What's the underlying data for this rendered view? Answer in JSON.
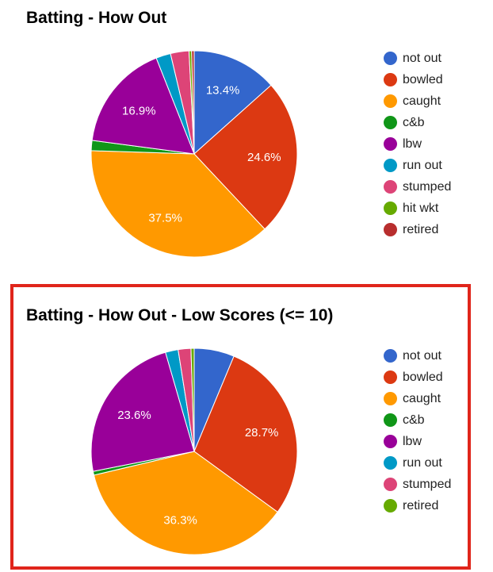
{
  "chart_data": [
    {
      "type": "pie",
      "title": "Batting - How Out",
      "categories": [
        "not out",
        "bowled",
        "caught",
        "c&b",
        "lbw",
        "run out",
        "stumped",
        "hit wkt",
        "retired"
      ],
      "values": [
        13.4,
        24.6,
        37.5,
        1.6,
        16.9,
        2.3,
        2.9,
        0.4,
        0.4
      ],
      "labels_shown": [
        "13.4%",
        "24.6%",
        "37.5%",
        "",
        "16.9%",
        "",
        "",
        "",
        ""
      ],
      "colors": [
        "#3366cc",
        "#dc3912",
        "#ff9900",
        "#109618",
        "#990099",
        "#0099c6",
        "#dd4477",
        "#66aa00",
        "#b82e2e"
      ],
      "legend_position": "right"
    },
    {
      "type": "pie",
      "title": "Batting - How Out - Low Scores (<= 10)",
      "categories": [
        "not out",
        "bowled",
        "caught",
        "c&b",
        "lbw",
        "run out",
        "stumped",
        "retired"
      ],
      "values": [
        6.3,
        28.7,
        36.3,
        0.6,
        23.6,
        2.0,
        2.0,
        0.5
      ],
      "labels_shown": [
        "",
        "28.7%",
        "36.3%",
        "",
        "23.6%",
        "",
        "",
        ""
      ],
      "colors": [
        "#3366cc",
        "#dc3912",
        "#ff9900",
        "#109618",
        "#990099",
        "#0099c6",
        "#dd4477",
        "#66aa00"
      ],
      "legend_position": "right",
      "highlighted": true,
      "highlight_color": "#e0251b"
    }
  ]
}
